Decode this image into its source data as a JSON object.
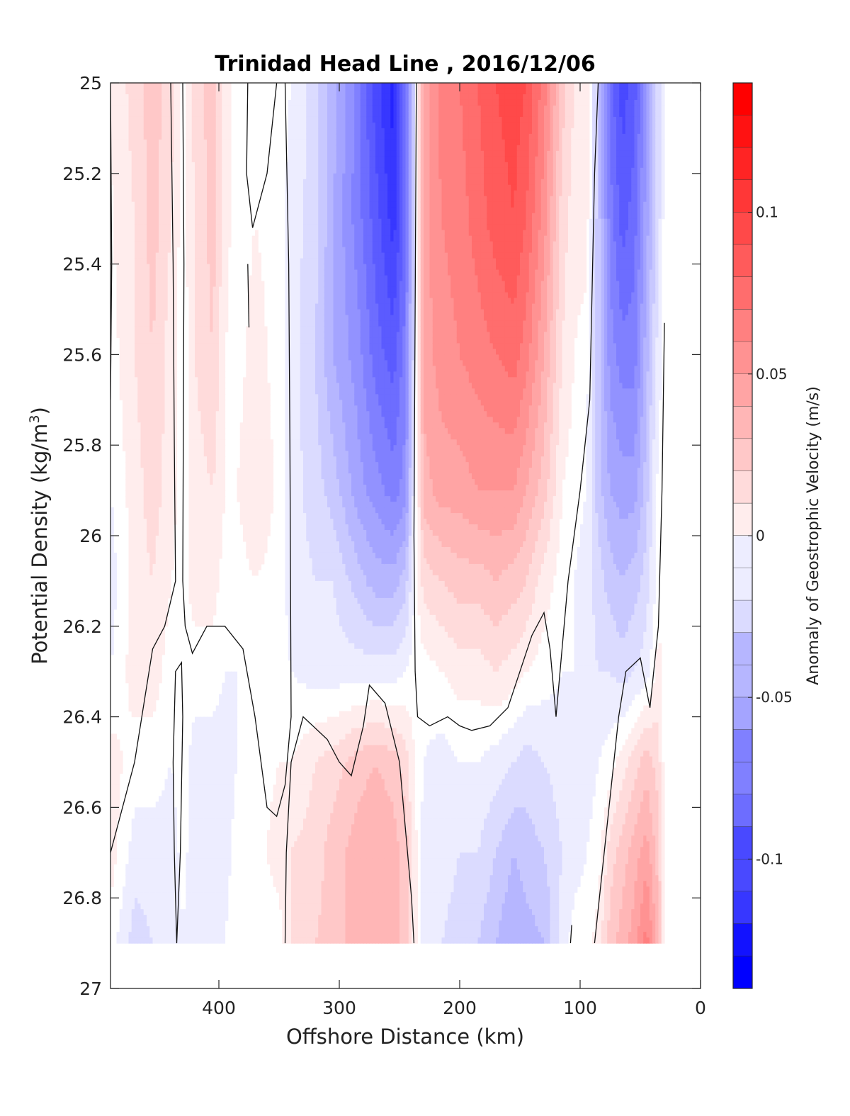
{
  "chart_data": {
    "type": "contour",
    "title": "Trinidad Head Line , 2016/12/06",
    "xlabel": "Offshore Distance (km)",
    "ylabel_main": "Potential Density (kg/m",
    "ylabel_sup": "3",
    "ylabel_end": ")",
    "xlim": [
      490,
      0
    ],
    "ylim": [
      25,
      27
    ],
    "x_ticks": [
      400,
      300,
      200,
      100,
      0
    ],
    "y_ticks": [
      25,
      25.2,
      25.4,
      25.6,
      25.8,
      26,
      26.2,
      26.4,
      26.6,
      26.8,
      27
    ],
    "y_tick_labels": [
      "25",
      "25.2",
      "25.4",
      "25.6",
      "25.8",
      "26",
      "26.2",
      "26.4",
      "26.6",
      "26.8",
      "27"
    ],
    "data_bottom_density": 26.9,
    "colorbar": {
      "label": "Anomaly of Geostrophic Velocity (m/s)",
      "range": [
        -0.14,
        0.14
      ],
      "step": 0.01,
      "ticks": [
        0.1,
        0.05,
        0,
        -0.05,
        -0.1
      ],
      "tick_labels": [
        "0.1",
        "0.05",
        "0",
        "-0.05",
        "-0.1"
      ],
      "positive_color": "#ff0000",
      "negative_color": "#0000ff",
      "zero_color": "#ffffff"
    },
    "columns_km": [
      490,
      470,
      455,
      440,
      430,
      420,
      405,
      395,
      385,
      370,
      350,
      340,
      320,
      305,
      285,
      270,
      255,
      245,
      238,
      230,
      215,
      200,
      185,
      170,
      155,
      145,
      130,
      115,
      105,
      95,
      85,
      75,
      65,
      55,
      45,
      35,
      30
    ],
    "rows_density": [
      25,
      25.3,
      25.6,
      25.9,
      26.1,
      26.3,
      26.5,
      26.7,
      26.9
    ],
    "velocity_grid": [
      [
        0.005,
        0.004,
        0.0,
        -0.005,
        -0.01,
        -0.005,
        0.01,
        0.01,
        0.0
      ],
      [
        0.02,
        0.015,
        0.015,
        0.01,
        0.01,
        0.01,
        0.0,
        -0.01,
        -0.02
      ],
      [
        0.03,
        0.03,
        0.025,
        0.02,
        0.015,
        0.01,
        0.0,
        -0.01,
        -0.015
      ],
      [
        0.02,
        0.015,
        0.01,
        0.01,
        0.005,
        0.0,
        -0.005,
        -0.01,
        -0.015
      ],
      [
        0.0,
        0.0,
        -0.002,
        0.0,
        0.0,
        0.002,
        0.0,
        -0.002,
        -0.005
      ],
      [
        0.02,
        0.015,
        0.015,
        0.01,
        0.01,
        0.0,
        -0.01,
        -0.01,
        -0.015
      ],
      [
        0.03,
        0.03,
        0.025,
        0.015,
        0.01,
        0.0,
        -0.01,
        -0.01,
        -0.015
      ],
      [
        0.01,
        0.01,
        0.005,
        0.005,
        0.0,
        -0.005,
        -0.01,
        -0.01,
        -0.005
      ],
      [
        0.0,
        -0.002,
        0.0,
        0.005,
        0.0,
        -0.005,
        -0.005,
        0.0,
        0.005
      ],
      [
        0.005,
        0.005,
        0.01,
        0.015,
        0.005,
        0.0,
        0.0,
        0.0,
        0.0
      ],
      [
        0.0,
        0.0,
        0.0,
        0.002,
        0.0,
        0.0,
        0.005,
        0.01,
        0.0
      ],
      [
        -0.005,
        -0.01,
        -0.01,
        -0.01,
        -0.01,
        -0.005,
        0.005,
        0.015,
        0.015
      ],
      [
        -0.02,
        -0.02,
        -0.025,
        -0.02,
        -0.015,
        -0.01,
        0.015,
        0.02,
        0.025
      ],
      [
        -0.04,
        -0.045,
        -0.045,
        -0.03,
        -0.015,
        -0.01,
        0.02,
        0.03,
        0.03
      ],
      [
        -0.07,
        -0.07,
        -0.06,
        -0.05,
        -0.03,
        -0.01,
        0.03,
        0.04,
        0.04
      ],
      [
        -0.1,
        -0.09,
        -0.08,
        -0.06,
        -0.04,
        -0.01,
        0.035,
        0.045,
        0.045
      ],
      [
        -0.12,
        -0.11,
        -0.09,
        -0.07,
        -0.04,
        -0.01,
        0.03,
        0.04,
        0.04
      ],
      [
        -0.08,
        -0.08,
        -0.07,
        -0.06,
        -0.03,
        -0.005,
        0.02,
        0.03,
        0.03
      ],
      [
        -0.02,
        -0.02,
        -0.02,
        -0.01,
        -0.005,
        0.0,
        0.005,
        0.01,
        0.01
      ],
      [
        0.05,
        0.05,
        0.05,
        0.04,
        0.02,
        0.0,
        -0.005,
        -0.01,
        -0.01
      ],
      [
        0.07,
        0.065,
        0.06,
        0.05,
        0.025,
        0.005,
        -0.01,
        -0.01,
        -0.015
      ],
      [
        0.075,
        0.07,
        0.065,
        0.05,
        0.03,
        0.01,
        -0.005,
        -0.015,
        -0.02
      ],
      [
        0.085,
        0.08,
        0.07,
        0.055,
        0.03,
        0.01,
        -0.005,
        -0.015,
        -0.025
      ],
      [
        0.095,
        0.09,
        0.075,
        0.055,
        0.035,
        0.015,
        -0.01,
        -0.025,
        -0.035
      ],
      [
        0.1,
        0.095,
        0.08,
        0.055,
        0.03,
        0.01,
        -0.015,
        -0.035,
        -0.045
      ],
      [
        0.095,
        0.085,
        0.07,
        0.045,
        0.025,
        0.005,
        -0.02,
        -0.03,
        -0.04
      ],
      [
        0.07,
        0.06,
        0.045,
        0.03,
        0.01,
        0.0,
        -0.015,
        -0.025,
        -0.035
      ],
      [
        0.03,
        0.02,
        0.015,
        0.005,
        0.0,
        -0.005,
        -0.01,
        -0.015,
        -0.01
      ],
      [
        0.015,
        0.01,
        0.005,
        0.0,
        -0.005,
        -0.005,
        -0.01,
        -0.01,
        0.0
      ],
      [
        0.01,
        0.01,
        0.0,
        -0.005,
        -0.01,
        -0.01,
        -0.01,
        -0.005,
        0.0
      ],
      [
        -0.03,
        -0.03,
        -0.03,
        -0.03,
        -0.02,
        -0.015,
        -0.005,
        0.0,
        0.01
      ],
      [
        -0.08,
        -0.07,
        -0.06,
        -0.045,
        -0.03,
        -0.015,
        0.0,
        0.02,
        0.03
      ],
      [
        -0.1,
        -0.09,
        -0.07,
        -0.05,
        -0.035,
        -0.02,
        0.01,
        0.03,
        0.04
      ],
      [
        -0.09,
        -0.08,
        -0.07,
        -0.05,
        -0.03,
        -0.015,
        0.02,
        0.04,
        0.05
      ],
      [
        -0.06,
        -0.05,
        -0.04,
        -0.03,
        -0.02,
        -0.01,
        0.03,
        0.05,
        0.07
      ],
      [
        -0.02,
        -0.02,
        -0.01,
        0.0,
        0.0,
        0.01,
        0.02,
        0.03,
        0.04
      ],
      [
        0.0,
        0.0,
        0.0,
        0.0,
        0.0,
        0.0,
        0.0,
        0.0,
        0.0
      ]
    ],
    "zero_contours_km_density": [
      [
        [
          490,
          25.0
        ],
        [
          489,
          25.4
        ],
        [
          490,
          25.7
        ]
      ],
      [
        [
          440,
          25.0
        ],
        [
          438,
          25.4
        ],
        [
          437,
          25.8
        ],
        [
          436,
          26.1
        ],
        [
          445,
          26.2
        ],
        [
          455,
          26.25
        ],
        [
          470,
          26.5
        ],
        [
          490,
          26.7
        ]
      ],
      [
        [
          430,
          25.0
        ],
        [
          429,
          25.4
        ],
        [
          430,
          26.1
        ],
        [
          428,
          26.2
        ],
        [
          422,
          26.26
        ],
        [
          410,
          26.2
        ],
        [
          395,
          26.2
        ],
        [
          380,
          26.25
        ],
        [
          370,
          26.4
        ],
        [
          360,
          26.6
        ],
        [
          352,
          26.62
        ],
        [
          345,
          26.55
        ],
        [
          340,
          26.4
        ],
        [
          341,
          25.8
        ],
        [
          342,
          25.4
        ],
        [
          345,
          25.0
        ]
      ],
      [
        [
          435,
          26.9
        ],
        [
          432,
          26.7
        ],
        [
          430,
          26.4
        ],
        [
          431,
          26.28
        ],
        [
          436,
          26.3
        ],
        [
          438,
          26.5
        ],
        [
          437,
          26.7
        ],
        [
          435,
          26.9
        ]
      ],
      [
        [
          352,
          25.0
        ],
        [
          360,
          25.2
        ],
        [
          372,
          25.32
        ],
        [
          377,
          25.2
        ],
        [
          376,
          25.0
        ]
      ],
      [
        [
          376,
          25.4
        ],
        [
          375,
          25.54
        ]
      ],
      [
        [
          345,
          26.9
        ],
        [
          344,
          26.7
        ],
        [
          340,
          26.5
        ],
        [
          330,
          26.4
        ],
        [
          310,
          26.45
        ],
        [
          300,
          26.5
        ],
        [
          290,
          26.53
        ],
        [
          280,
          26.42
        ],
        [
          275,
          26.33
        ],
        [
          262,
          26.37
        ],
        [
          250,
          26.5
        ],
        [
          240,
          26.8
        ],
        [
          238,
          26.9
        ]
      ],
      [
        [
          236,
          25.0
        ],
        [
          237,
          25.5
        ],
        [
          238,
          26.0
        ],
        [
          237,
          26.3
        ],
        [
          235,
          26.4
        ],
        [
          225,
          26.42
        ],
        [
          210,
          26.4
        ],
        [
          200,
          26.42
        ],
        [
          190,
          26.43
        ],
        [
          175,
          26.42
        ],
        [
          160,
          26.38
        ],
        [
          150,
          26.3
        ],
        [
          140,
          26.22
        ],
        [
          130,
          26.17
        ],
        [
          125,
          26.25
        ],
        [
          120,
          26.4
        ],
        [
          110,
          26.1
        ],
        [
          100,
          25.9
        ],
        [
          92,
          25.7
        ],
        [
          88,
          25.2
        ],
        [
          85,
          25.0
        ]
      ],
      [
        [
          108,
          26.9
        ],
        [
          107,
          26.86
        ]
      ],
      [
        [
          88,
          26.9
        ],
        [
          80,
          26.7
        ],
        [
          72,
          26.5
        ],
        [
          68,
          26.4
        ],
        [
          62,
          26.3
        ],
        [
          50,
          26.27
        ],
        [
          42,
          26.38
        ],
        [
          35,
          26.2
        ],
        [
          32,
          25.9
        ],
        [
          30,
          25.53
        ]
      ]
    ]
  }
}
